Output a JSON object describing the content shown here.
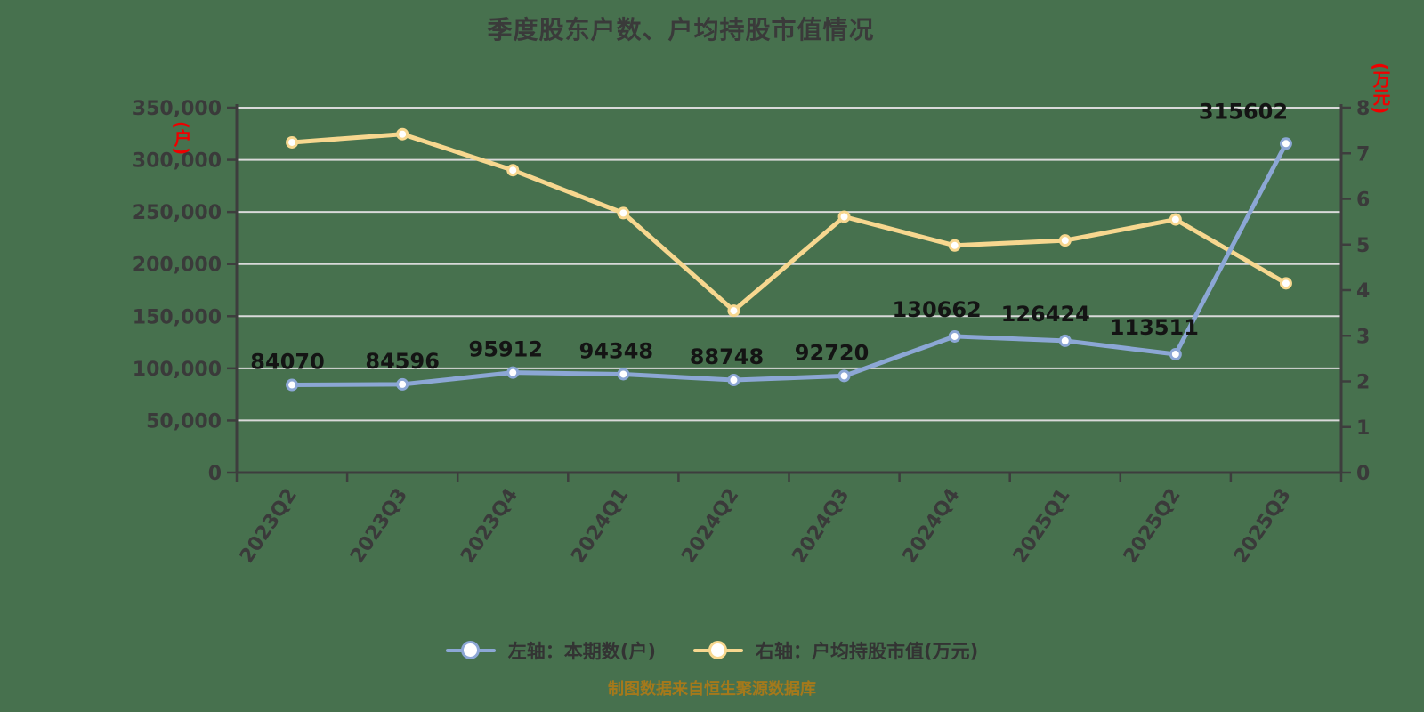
{
  "title": "季度股东户数、户均持股市值情况",
  "footer": "制图数据来自恒生聚源数据库",
  "colors": {
    "background": "#47714E",
    "title_text": "#3A3A3A",
    "axis_line": "#3D3D3D",
    "grid_line": "#D9D9D9",
    "tick_text": "#3A3A3A",
    "data_label_text": "#141414",
    "axis_unit_text": "#EE0000",
    "footer_text": "#A5791B",
    "series_left": "#8CA7D5",
    "series_right": "#F7D78F",
    "marker_fill": "#FFFFFF"
  },
  "legend": [
    {
      "label": "左轴：本期数(户)",
      "color": "#8CA7D5"
    },
    {
      "label": "右轴：户均持股市值(万元)",
      "color": "#F7D78F"
    }
  ],
  "chart_data": {
    "type": "line",
    "title": "季度股东户数、户均持股市值情况",
    "categories": [
      "2023Q2",
      "2023Q3",
      "2023Q4",
      "2024Q1",
      "2024Q2",
      "2024Q3",
      "2024Q4",
      "2025Q1",
      "2025Q2",
      "2025Q3"
    ],
    "left_axis": {
      "unit": "(户)",
      "min": 0,
      "max": 350000,
      "step": 50000
    },
    "right_axis": {
      "unit": "(万元)",
      "min": 0,
      "max": 8,
      "step": 1
    },
    "grid": true,
    "legend_position": "bottom",
    "series": [
      {
        "name": "左轴：本期数(户)",
        "axis": "left",
        "color": "#8CA7D5",
        "show_point_labels": true,
        "values": [
          84070,
          84596,
          95912,
          94348,
          88748,
          92720,
          130662,
          126424,
          113511,
          315602
        ]
      },
      {
        "name": "右轴：户均持股市值(万元)",
        "axis": "right",
        "color": "#F7D78F",
        "show_point_labels": false,
        "values": [
          7.24,
          7.42,
          6.63,
          5.69,
          3.55,
          5.61,
          4.98,
          5.09,
          5.55,
          4.15
        ]
      }
    ]
  }
}
